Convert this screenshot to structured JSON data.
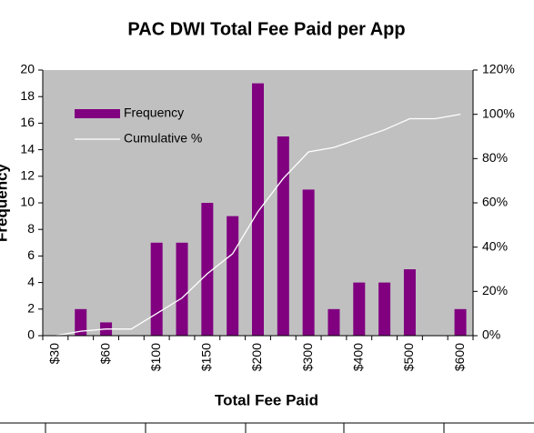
{
  "chart_data": {
    "type": "bar",
    "title": "PAC DWI Total Fee Paid per App",
    "xlabel": "Total Fee Paid",
    "ylabel": "Frequency",
    "categories": [
      "$30",
      null,
      "$60",
      null,
      "$100",
      null,
      "$150",
      null,
      "$200",
      null,
      "$300",
      null,
      "$400",
      null,
      "$500",
      null,
      "$600"
    ],
    "series": [
      {
        "name": "Frequency",
        "type": "bar",
        "color": "#800080",
        "values": [
          0,
          2,
          1,
          0,
          7,
          7,
          10,
          9,
          19,
          15,
          11,
          2,
          4,
          4,
          5,
          0,
          2
        ]
      },
      {
        "name": "Cumulative %",
        "type": "line",
        "color": "#ffffff",
        "axis": "y2",
        "values": [
          0,
          2,
          3,
          3,
          10,
          17,
          28,
          37,
          56,
          71,
          83,
          85,
          89,
          93,
          98,
          98,
          100
        ]
      }
    ],
    "ylim": [
      0,
      20
    ],
    "yticks": [
      0,
      2,
      4,
      6,
      8,
      10,
      12,
      14,
      16,
      18,
      20
    ],
    "y2lim": [
      0,
      120
    ],
    "y2ticks": [
      {
        "value": 0,
        "label": "0%"
      },
      {
        "value": 20,
        "label": "20%"
      },
      {
        "value": 40,
        "label": "40%"
      },
      {
        "value": 60,
        "label": "60%"
      },
      {
        "value": 80,
        "label": "80%"
      },
      {
        "value": 100,
        "label": "100%"
      },
      {
        "value": 120,
        "label": "120%"
      }
    ],
    "grid": false,
    "legend": "upper left",
    "background": "#c0c0c0"
  }
}
